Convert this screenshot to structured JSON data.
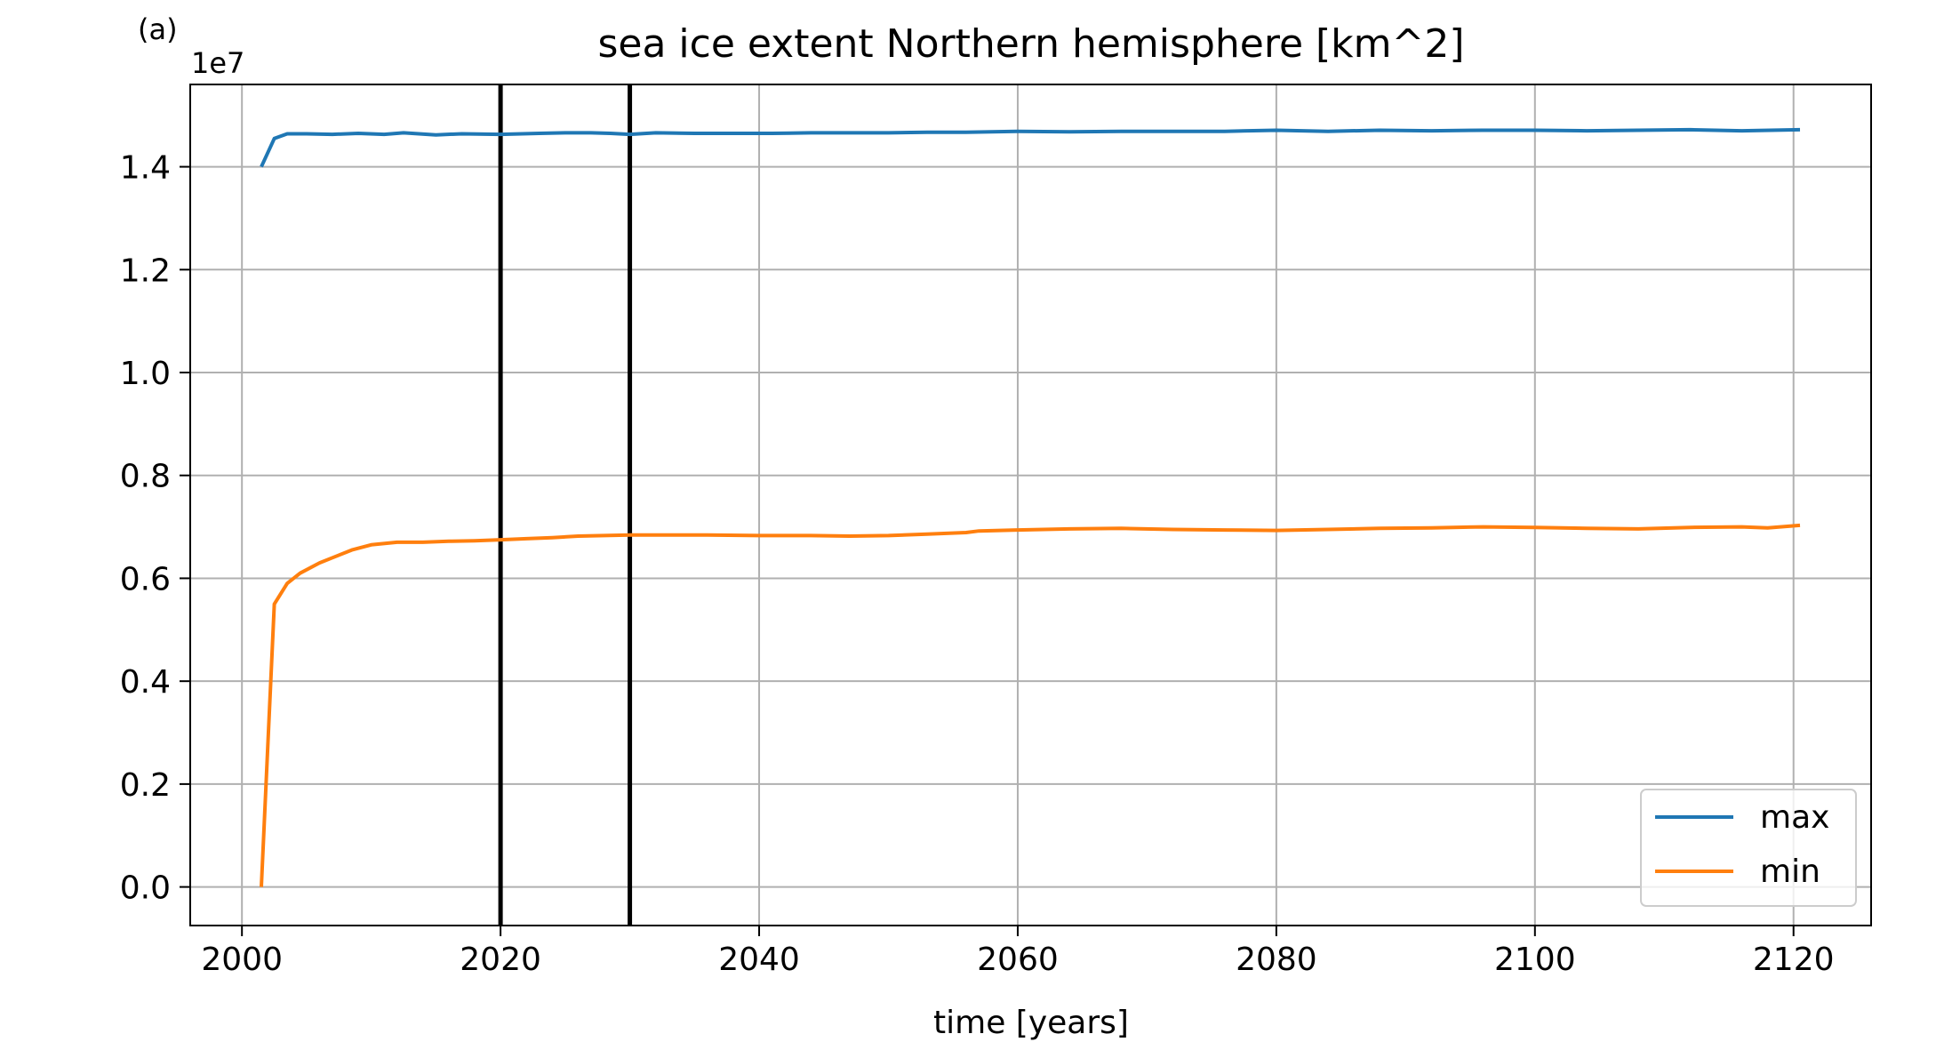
{
  "panel_label": "(a)",
  "chart_data": {
    "type": "line",
    "title": "sea ice extent Northern hemisphere [km^2]",
    "xlabel": "time [years]",
    "ylabel": "",
    "offset_text": "1e7",
    "y_multiplier": 10000000,
    "xlim": [
      1996,
      2126
    ],
    "ylim": [
      -0.075,
      1.56
    ],
    "x_ticks": [
      2000,
      2020,
      2040,
      2060,
      2080,
      2100,
      2120
    ],
    "x_tick_labels": [
      "2000",
      "2020",
      "2040",
      "2060",
      "2080",
      "2100",
      "2120"
    ],
    "y_ticks": [
      0.0,
      0.2,
      0.4,
      0.6,
      0.8,
      1.0,
      1.2,
      1.4
    ],
    "y_tick_labels": [
      "0.0",
      "0.2",
      "0.4",
      "0.6",
      "0.8",
      "1.0",
      "1.2",
      "1.4"
    ],
    "grid": true,
    "legend_position": "lower-right",
    "vertical_lines": [
      2020,
      2030
    ],
    "colors": {
      "max": "#1f77b4",
      "min": "#ff7f0e",
      "grid": "#b0b0b0",
      "vline": "#000000"
    },
    "series": [
      {
        "name": "max",
        "color": "#1f77b4",
        "x": [
          2001.5,
          2002.5,
          2003.5,
          2005,
          2007,
          2009,
          2011,
          2012.5,
          2015,
          2017,
          2020,
          2023,
          2025,
          2027,
          2028.5,
          2030,
          2032,
          2035,
          2038,
          2041,
          2044,
          2047,
          2050,
          2053,
          2056,
          2060,
          2064,
          2068,
          2072,
          2076,
          2080,
          2084,
          2088,
          2092,
          2096,
          2100,
          2104,
          2108,
          2112,
          2116,
          2120.5
        ],
        "y": [
          1.4,
          1.455,
          1.464,
          1.464,
          1.463,
          1.465,
          1.463,
          1.466,
          1.462,
          1.464,
          1.463,
          1.465,
          1.466,
          1.466,
          1.465,
          1.463,
          1.466,
          1.465,
          1.465,
          1.465,
          1.466,
          1.466,
          1.466,
          1.467,
          1.467,
          1.469,
          1.468,
          1.469,
          1.469,
          1.469,
          1.471,
          1.469,
          1.471,
          1.47,
          1.471,
          1.471,
          1.47,
          1.471,
          1.472,
          1.47,
          1.472
        ]
      },
      {
        "name": "min",
        "color": "#ff7f0e",
        "x": [
          2001.5,
          2002.5,
          2003.5,
          2004.5,
          2006,
          2007,
          2008.5,
          2010,
          2012,
          2014,
          2016,
          2018,
          2020,
          2022,
          2024,
          2026,
          2028,
          2030,
          2033,
          2036,
          2040,
          2044,
          2047,
          2050,
          2053,
          2056,
          2057,
          2060,
          2064,
          2068,
          2072,
          2076,
          2080,
          2084,
          2088,
          2092,
          2096,
          2100,
          2104,
          2108,
          2112,
          2116,
          2118,
          2120.5
        ],
        "y": [
          0.0,
          0.55,
          0.59,
          0.61,
          0.63,
          0.64,
          0.655,
          0.665,
          0.67,
          0.67,
          0.672,
          0.673,
          0.675,
          0.677,
          0.679,
          0.682,
          0.683,
          0.684,
          0.684,
          0.684,
          0.683,
          0.683,
          0.682,
          0.683,
          0.686,
          0.689,
          0.692,
          0.694,
          0.696,
          0.697,
          0.695,
          0.694,
          0.693,
          0.695,
          0.697,
          0.698,
          0.7,
          0.699,
          0.697,
          0.696,
          0.699,
          0.7,
          0.698,
          0.703
        ]
      }
    ]
  }
}
